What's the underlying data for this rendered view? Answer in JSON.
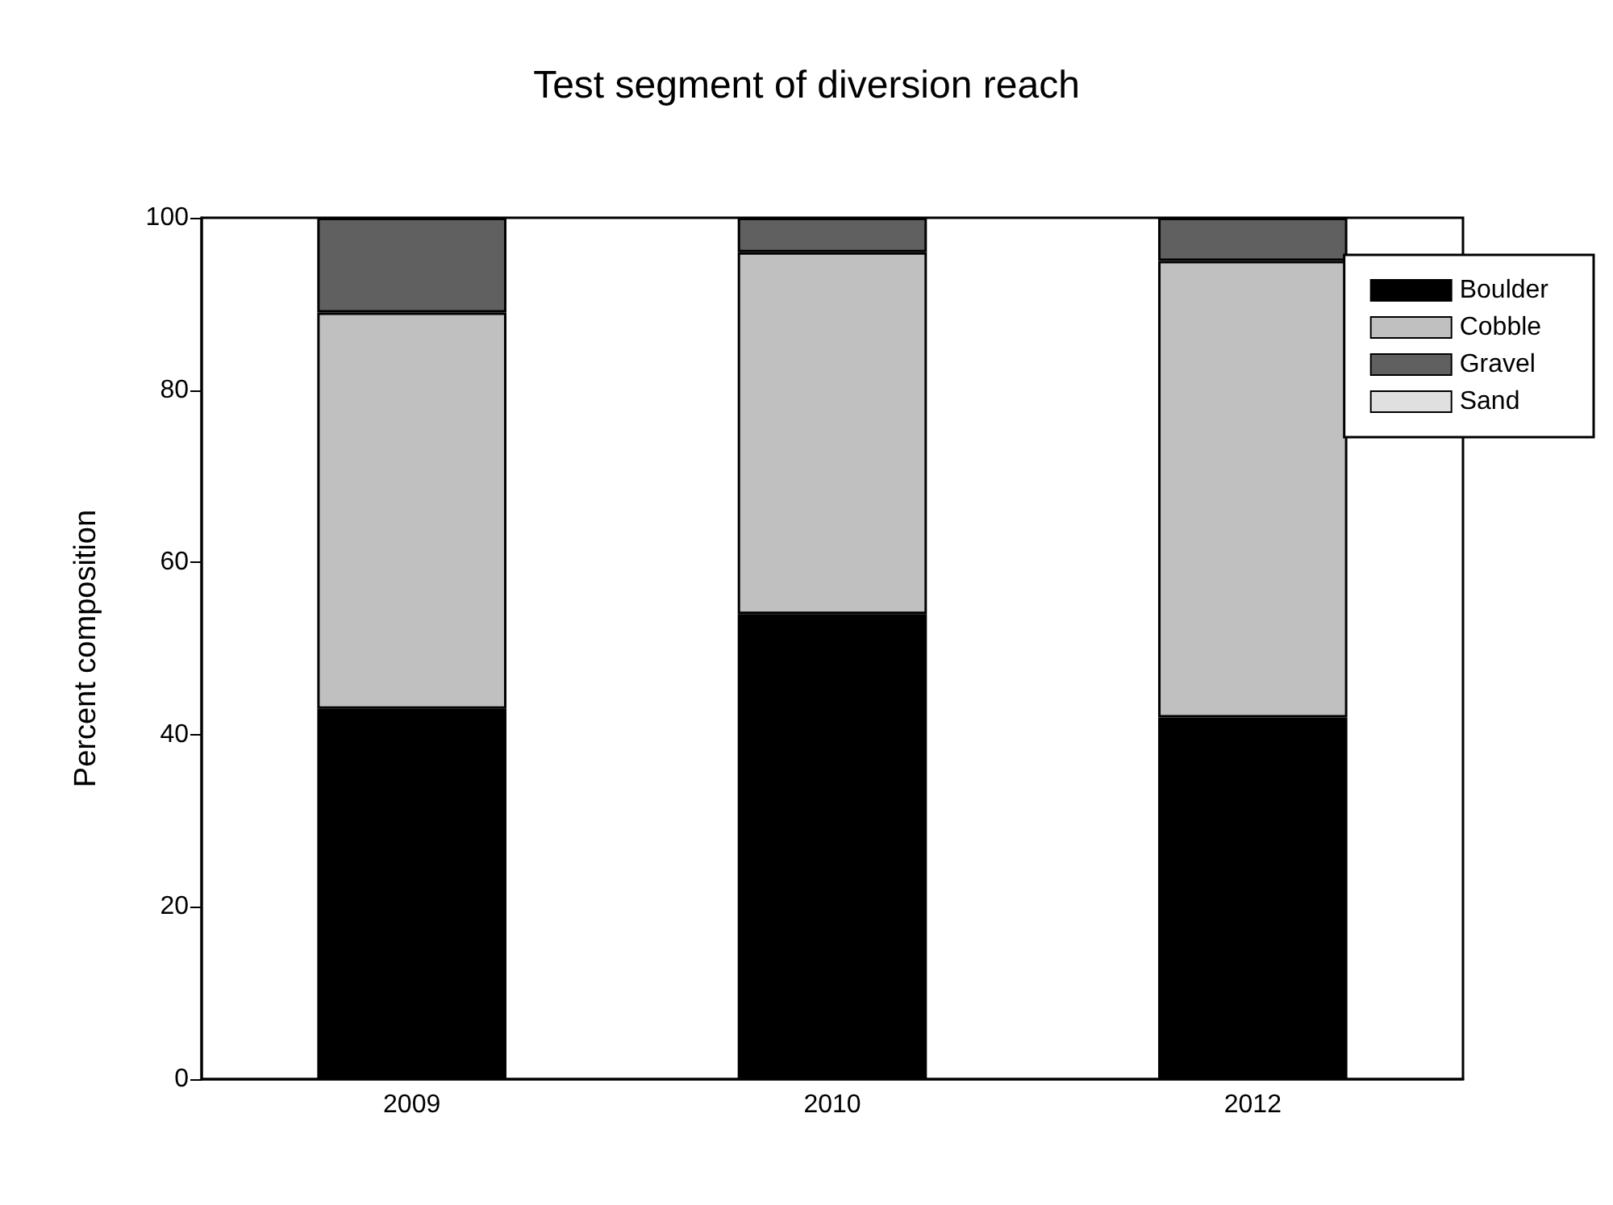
{
  "chart_data": {
    "type": "bar",
    "title": "Test segment of diversion reach",
    "ylabel": "Percent composition",
    "categories": [
      "2009",
      "2010",
      "2012"
    ],
    "stacked": true,
    "series": [
      {
        "name": "Boulder",
        "color": "#000000",
        "values": [
          43,
          54,
          42
        ]
      },
      {
        "name": "Cobble",
        "color": "#c0c0c0",
        "values": [
          46,
          42,
          53
        ]
      },
      {
        "name": "Gravel",
        "color": "#606060",
        "values": [
          11,
          4,
          5
        ]
      },
      {
        "name": "Sand",
        "color": "#e0e0e0",
        "values": [
          0,
          0,
          0
        ]
      }
    ],
    "ylim": [
      0,
      100
    ],
    "yticks": [
      0,
      20,
      40,
      60,
      80,
      100
    ],
    "grid": false,
    "legend": "top right"
  }
}
